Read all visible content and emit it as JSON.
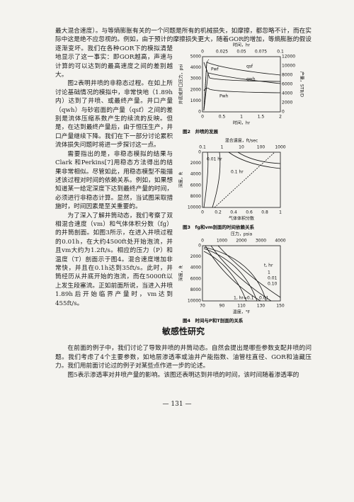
{
  "intro_paragraph": "最大混合速度）。与等熵膨胀有关的一个问题是所有的机械损失，如摩擦，都忽略不计，而在实际中这是绝不应忽视的。例如，由于预计的摩擦损失更大，随着GOR的增加，等熵膨胀的假设逐渐变坏。我们在各种GOR下的模拟清楚地显示了这一事实：即GOR越高，声速与计算的可以达到的最高速度之间的差别越大。",
  "column_paragraphs": [
    "图2表明井喷的非稳态过程。在如上所讨论基础情况的模拟中，非常快地（1.89h内）达到了井喷、或最终产量。井口产量（qwh）与砂岩面的产量（qsf）之间的差别是流体压缩系数产生的续流的反映。但是，在达到最终产量后，由于恒压生产，井口产量继续下降。我们在下一部分讨论累积流体损失问题时将进一步探讨这一点。",
    "需要指出的是，非稳态模拟的结果与Clark 和Perkins[7]用稳态方法得出的结果非常相似。尽管如此，用稳态模型不能描述该过程对时间的依赖关系。例如，如果想知道某一给定深度下达到最终产量的时间，必须进行非稳态计算。显然，当试图采取措施时，时间因素是至关重要的。",
    "为了深入了解井筒动态，我们考察了双相混合速度（vm）和气体体积分数（fg）的井筒剖面。如图3所示，在进入井喷过程的0.01h，在大约4500ft处开始泡流，并且vm大约为1.2ft/s。相应的压力（P）和温度（T）剖面示于图4。混合速度增加非常快，并且在0.1h达到35ft/s。此时，井筒经历从井底开始的泡流，而在5000ft以上发生段塞流。正如前面所说，当进入井喷1.89h后开始临界产量时，vm达到455ft/s。"
  ],
  "figures": [
    {
      "caption": "图2　井喷的发展",
      "top_label": "时间，hr",
      "top_ticks": [
        "0",
        "0.025",
        "0.05",
        "0.075",
        "0.1"
      ],
      "left_ticks": [
        "5000",
        "4000",
        "3000",
        "2000",
        "1000",
        "0"
      ],
      "right_ticks": [
        "12000",
        "10000",
        "8000",
        "6000",
        "4000",
        "2000",
        "0"
      ],
      "bottom_ticks": [
        "0",
        "0.5",
        "1",
        "1.5",
        "2"
      ],
      "bottom_label": "时间，hr",
      "left_label": "井底或井口压力，psi",
      "right_label": "产量，STB/D",
      "curve_labels": [
        "Pwf",
        "Pwh",
        "qsf",
        "qwh"
      ]
    },
    {
      "caption": "图3　fg和vm剖面的时间依赖关系",
      "top_label": "混合速度，ft/sec",
      "top_ticks": [
        "0.1",
        "1",
        "10",
        "100",
        "1000"
      ],
      "left_ticks": [
        "0",
        "2000",
        "4000",
        "6000",
        "8000",
        "10000"
      ],
      "bottom_ticks": [
        "0",
        "0.2",
        "0.4",
        "0.6",
        "0.8",
        "1"
      ],
      "bottom_label": "气体体积分数",
      "left_label": "深度，ft",
      "curve_labels": [
        "0.01 hr",
        "0.1 hr"
      ]
    },
    {
      "caption": "图4　时间与P和T剖面的关系",
      "top_label": "压力，psia",
      "top_ticks": [
        "0",
        "1000",
        "2000",
        "3000",
        "4000"
      ],
      "left_ticks": [
        "0",
        "2000",
        "4000",
        "6000",
        "8000",
        "10000"
      ],
      "bottom_ticks": [
        "70",
        "90",
        "110",
        "130",
        "150"
      ],
      "bottom_label": "温度，°F",
      "left_label": "深度，ft",
      "curve_labels": [
        "t, hr",
        "1",
        "0.01",
        "0.10",
        "1, hr=0.1",
        "0.01"
      ]
    }
  ],
  "section_heading": "敏感性研究",
  "section_paragraphs": [
    "在前面的例子中，我们讨论了导致井喷的井筒动态。自然会提出是哪些参数支配井喷的问题。我们考虑了4个主要参数，如地层渗透率或油井产能指数、油管柱直径、GOR和油藏压力。我们用前面讨论过的例子对某些点作进一步的论述。",
    "图5表示渗透率对井喷产量的影响。该图还表明达到井喷的时间，该时间随着渗透率的"
  ],
  "page_number": "— 131 —"
}
